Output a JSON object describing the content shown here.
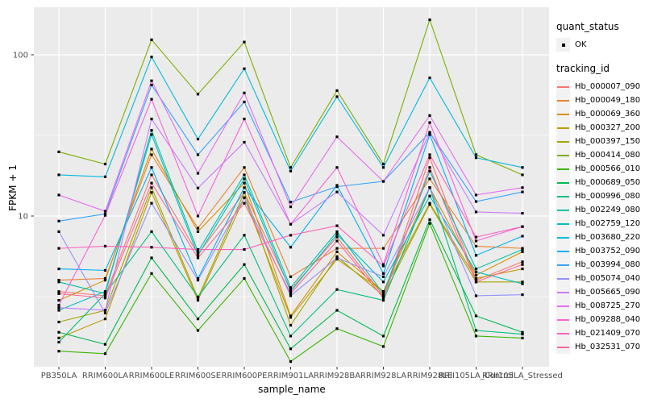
{
  "figure": {
    "background": "#FFFFFF",
    "panel_background": "#EBEBEB",
    "gridline_color": "#FFFFFF",
    "tick_color": "#333333",
    "tick_label_color": "#4D4D4D",
    "point_color": "#000000"
  },
  "legend": {
    "quant_status_title": "quant_status",
    "quant_status_items": [
      {
        "label": "OK",
        "marker": "black-point"
      }
    ],
    "tracking_id_title": "tracking_id"
  },
  "chart_data": {
    "type": "line",
    "title": "",
    "xlabel": "sample_name",
    "ylabel": "FPKM + 1",
    "y_scale": "log10",
    "y_ticks": [
      100,
      10
    ],
    "ylim": [
      1.15,
      200
    ],
    "grid": true,
    "legend_position": "right",
    "point_marker": "small black square (quant_status OK)",
    "categories": [
      "PB350LA",
      "RRIM600LA",
      "RRIM600LE",
      "RRIM600SE",
      "RRIM600PE",
      "RRIM901LA",
      "RRIM928BA",
      "RRIM928LA",
      "RRIM928LE",
      "RRII105LA_Control",
      "RRII105LA_Stressed"
    ],
    "series": [
      {
        "name": "Hb_000007_090",
        "color": "#F8766D",
        "values": [
          3.4,
          3.2,
          18,
          5.8,
          14,
          3.5,
          7.4,
          3.2,
          23,
          4.0,
          5.2
        ]
      },
      {
        "name": "Hb_000049_180",
        "color": "#EA8331",
        "values": [
          4.0,
          4.1,
          24,
          8.4,
          20,
          4.2,
          6.3,
          6.3,
          17,
          6.5,
          6.3
        ]
      },
      {
        "name": "Hb_000069_360",
        "color": "#D89000",
        "values": [
          3.0,
          4.0,
          26,
          8.0,
          16,
          2.4,
          6.0,
          3.4,
          15,
          4.3,
          6.0
        ]
      },
      {
        "name": "Hb_000327_200",
        "color": "#C09B00",
        "values": [
          1.75,
          2.3,
          14,
          3.0,
          13,
          2.35,
          5.4,
          3.4,
          12,
          4.1,
          4.7
        ]
      },
      {
        "name": "Hb_000397_150",
        "color": "#A3A500",
        "values": [
          2.2,
          2.6,
          15,
          3.1,
          14,
          2.1,
          5.6,
          3.2,
          11.8,
          3.9,
          3.9
        ]
      },
      {
        "name": "Hb_000414_080",
        "color": "#7CAE00",
        "values": [
          25,
          21,
          124,
          57,
          120,
          20,
          60,
          21,
          165,
          24,
          18
        ]
      },
      {
        "name": "Hb_000566_010",
        "color": "#39B600",
        "values": [
          1.45,
          1.4,
          4.4,
          1.95,
          4.1,
          1.25,
          2.0,
          1.55,
          9.0,
          1.8,
          1.75
        ]
      },
      {
        "name": "Hb_000689_050",
        "color": "#00BB4E",
        "values": [
          1.9,
          1.6,
          5.5,
          2.3,
          5.0,
          1.5,
          2.6,
          1.8,
          9.5,
          2.4,
          1.9
        ]
      },
      {
        "name": "Hb_000996_080",
        "color": "#00BF7D",
        "values": [
          1.65,
          3.3,
          8.0,
          3.15,
          7.6,
          1.8,
          3.5,
          3.0,
          15,
          1.95,
          1.85
        ]
      },
      {
        "name": "Hb_002249_080",
        "color": "#00C1A3",
        "values": [
          3.9,
          3.3,
          34,
          6.0,
          18,
          3.6,
          8.0,
          3.3,
          19,
          4.7,
          6.2
        ]
      },
      {
        "name": "Hb_002759_120",
        "color": "#00BFC4",
        "values": [
          2.6,
          3.4,
          32,
          5.7,
          17,
          3.4,
          7.7,
          3.9,
          13.3,
          4.5,
          3.8
        ]
      },
      {
        "name": "Hb_003680_220",
        "color": "#00BAE0",
        "values": [
          18,
          17.5,
          97,
          30,
          82,
          19,
          55,
          20,
          72,
          23,
          20
        ]
      },
      {
        "name": "Hb_003752_090",
        "color": "#00B0F6",
        "values": [
          4.7,
          4.6,
          20,
          4.1,
          15,
          6.4,
          15.5,
          4.4,
          32,
          5.7,
          7.5
        ]
      },
      {
        "name": "Hb_003994_080",
        "color": "#35A2FF",
        "values": [
          9.3,
          10.3,
          65,
          24,
          51,
          12.2,
          15.2,
          16.4,
          33,
          12.3,
          14.1
        ]
      },
      {
        "name": "Hb_005074_040",
        "color": "#9590FF",
        "values": [
          8.0,
          2.5,
          12,
          4.0,
          13,
          3.2,
          5.5,
          4.2,
          15,
          3.2,
          3.25
        ]
      },
      {
        "name": "Hb_005665_090",
        "color": "#C77CFF",
        "values": [
          2.7,
          2.6,
          40,
          14.9,
          28.7,
          8.9,
          14.1,
          7.6,
          33,
          10.6,
          10.4
        ]
      },
      {
        "name": "Hb_008725_270",
        "color": "#E76BF3",
        "values": [
          13.5,
          10.7,
          69,
          18.4,
          58,
          11.4,
          31,
          16.4,
          42,
          13.5,
          15
        ]
      },
      {
        "name": "Hb_009288_040",
        "color": "#FA62DB",
        "values": [
          2.8,
          10.1,
          53,
          10,
          40,
          8.9,
          20,
          5.0,
          38,
          7.0,
          8.6
        ]
      },
      {
        "name": "Hb_021409_070",
        "color": "#FF62BC",
        "values": [
          6.3,
          6.5,
          6.4,
          6.2,
          6.2,
          7.6,
          8.7,
          4.9,
          24,
          7.4,
          8.6
        ]
      },
      {
        "name": "Hb_032531_070",
        "color": "#FF6A98",
        "values": [
          3.3,
          3.1,
          16,
          5.5,
          12,
          3.3,
          7.0,
          3.1,
          20,
          3.9,
          5.0
        ]
      }
    ]
  }
}
